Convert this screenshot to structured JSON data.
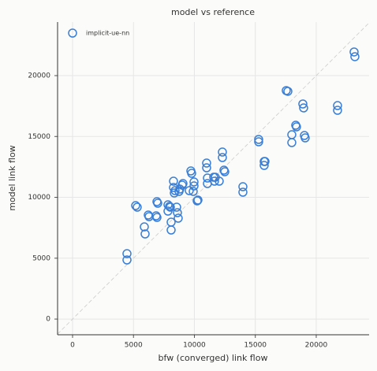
{
  "chart_data": {
    "type": "scatter",
    "title": "model vs reference",
    "x_label": "bfw (converged) link flow",
    "y_label": "model link flow",
    "series": [
      {
        "name": "implicit-ue-nn",
        "color": "#3a7fd5",
        "x": [
          4466,
          4466,
          5178,
          5307,
          5890,
          5955,
          6214,
          6278,
          6861,
          6926,
          6926,
          6990,
          7832,
          7832,
          8091,
          8091,
          7961,
          8026,
          8285,
          8285,
          8350,
          8414,
          8544,
          8608,
          8673,
          8738,
          8803,
          8997,
          9061,
          9579,
          9709,
          9773,
          9968,
          9903,
          9968,
          10227,
          10291,
          11003,
          11003,
          11068,
          11068,
          11586,
          11650,
          12039,
          11715,
          12298,
          12298,
          12427,
          12492,
          13981,
          13981,
          15275,
          15275,
          15728,
          15728,
          15793,
          17994,
          17994,
          18317,
          18382,
          17540,
          17670,
          18900,
          18964,
          19029,
          19094,
          21748,
          21748,
          23107,
          23172
        ],
        "y": [
          5372,
          4854,
          9320,
          9191,
          7573,
          6990,
          8544,
          8414,
          8479,
          8350,
          9644,
          9515,
          9385,
          8867,
          7314,
          7961,
          9256,
          9191,
          11327,
          10809,
          10356,
          10550,
          9191,
          8738,
          8285,
          10485,
          10680,
          11003,
          11133,
          10550,
          12168,
          11974,
          11262,
          10485,
          10939,
          9709,
          9773,
          12816,
          12427,
          11586,
          11133,
          11650,
          11327,
          11327,
          11650,
          13722,
          13269,
          12233,
          12104,
          10874,
          10421,
          14757,
          14563,
          12945,
          12621,
          12945,
          15146,
          14498,
          15922,
          15793,
          18770,
          18706,
          17670,
          17346,
          15081,
          14887,
          17540,
          17152,
          21942,
          21553
        ]
      }
    ],
    "xlim": [
      -1230,
      24340
    ],
    "ylim": [
      -1290,
      24400
    ],
    "xticks": [
      0,
      5000,
      10000,
      15000,
      20000
    ],
    "yticks": [
      0,
      5000,
      10000,
      15000,
      20000
    ],
    "grid": true,
    "diagonal": true,
    "legend": "upper left"
  }
}
